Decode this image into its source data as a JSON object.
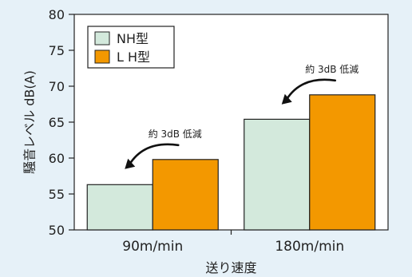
{
  "chart_data": {
    "type": "bar",
    "categories": [
      "90m/min",
      "180m/min"
    ],
    "series": [
      {
        "name": "NH型",
        "color": "#d3e9dc",
        "values": [
          56.3,
          65.4
        ]
      },
      {
        "name": "L H型",
        "color": "#f39800",
        "values": [
          59.8,
          68.8
        ]
      }
    ],
    "ylabel": "騒音レベル dB(A)",
    "xlabel": "送り速度",
    "ylim": [
      50,
      80
    ],
    "yticks": [
      50,
      55,
      60,
      65,
      70,
      75,
      80
    ],
    "grid": false,
    "legend": "top-left",
    "annotations": [
      {
        "category": 0,
        "text": "約 3dB 低減"
      },
      {
        "category": 1,
        "text": "約 3dB 低減"
      }
    ]
  },
  "colors": {
    "background": "#e6f1f8",
    "plot_background": "#ffffff",
    "axis": "#222222"
  }
}
